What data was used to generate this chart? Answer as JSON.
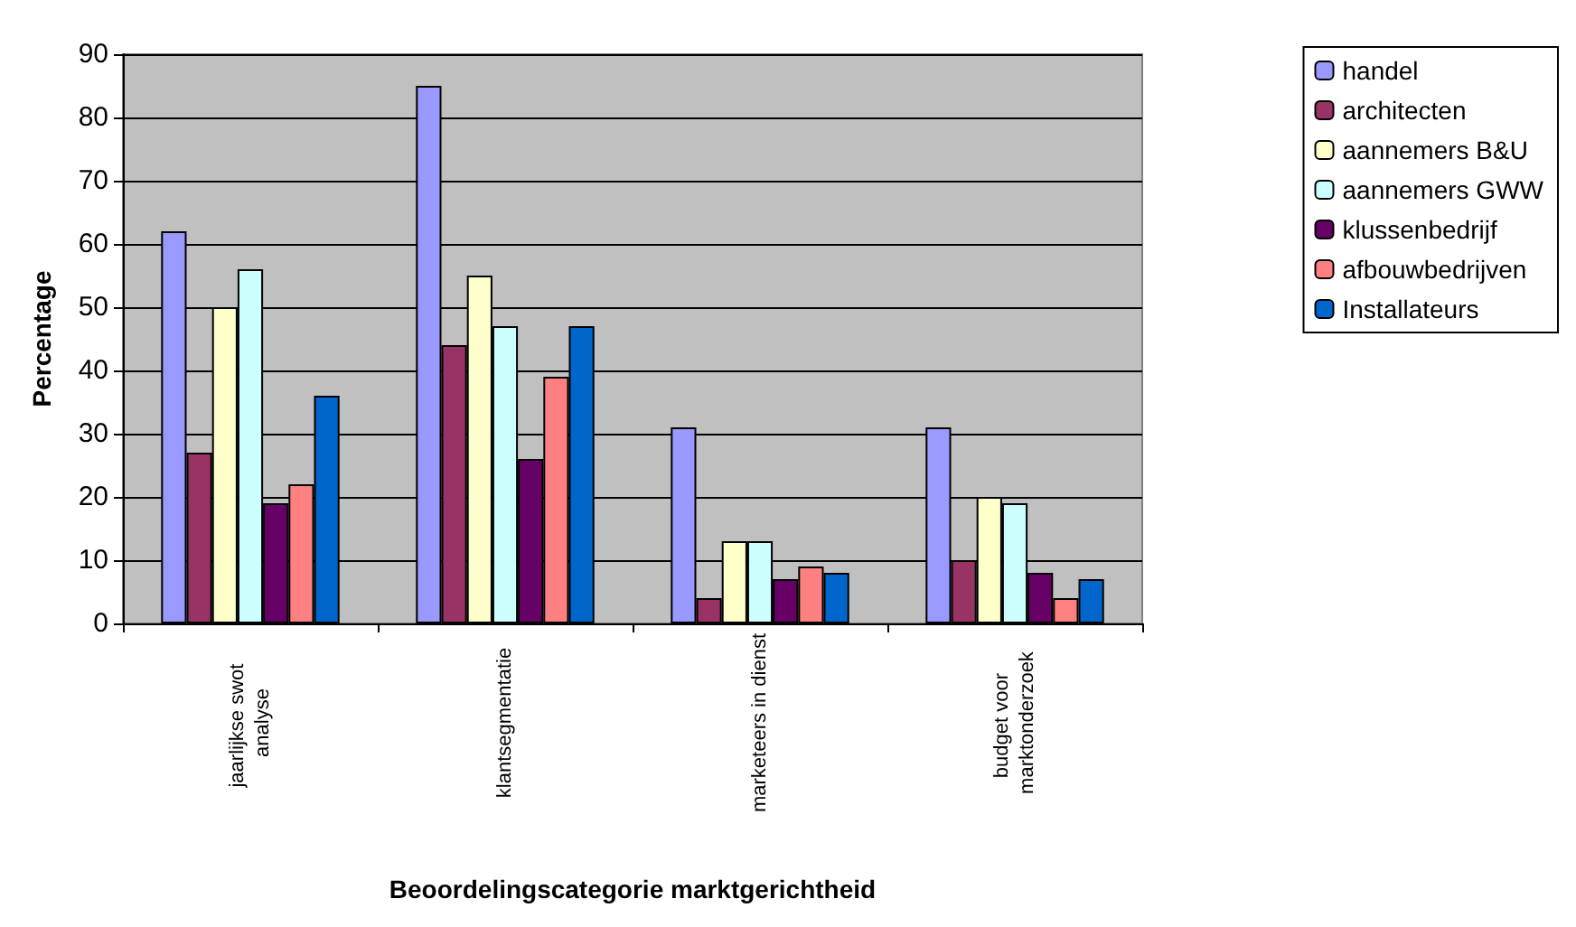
{
  "chart_data": {
    "type": "bar",
    "xlabel": "Beoordelingscategorie marktgerichtheid",
    "ylabel": "Percentage",
    "categories": [
      "jaarlijkse swot analyse",
      "klantsegmentatie",
      "marketeers in dienst",
      "budget voor marktonderzoek"
    ],
    "series": [
      {
        "name": "handel",
        "color": "#9999ff",
        "values": [
          62,
          85,
          31,
          31
        ]
      },
      {
        "name": "architecten",
        "color": "#993366",
        "values": [
          27,
          44,
          4,
          10
        ]
      },
      {
        "name": "aannemers B&U",
        "color": "#ffffcc",
        "values": [
          50,
          55,
          13,
          20
        ]
      },
      {
        "name": "aannemers GWW",
        "color": "#ccffff",
        "values": [
          56,
          47,
          13,
          19
        ]
      },
      {
        "name": "klussenbedrijf",
        "color": "#660066",
        "values": [
          19,
          26,
          7,
          8
        ]
      },
      {
        "name": "afbouwbedrijven",
        "color": "#ff8080",
        "values": [
          22,
          39,
          9,
          4
        ]
      },
      {
        "name": "Installateurs",
        "color": "#0066cc",
        "values": [
          36,
          47,
          8,
          7
        ]
      }
    ],
    "ylim": [
      0,
      90
    ],
    "yticks": [
      0,
      10,
      20,
      30,
      40,
      50,
      60,
      70,
      80,
      90
    ],
    "grid": "y",
    "legend": "top right"
  }
}
